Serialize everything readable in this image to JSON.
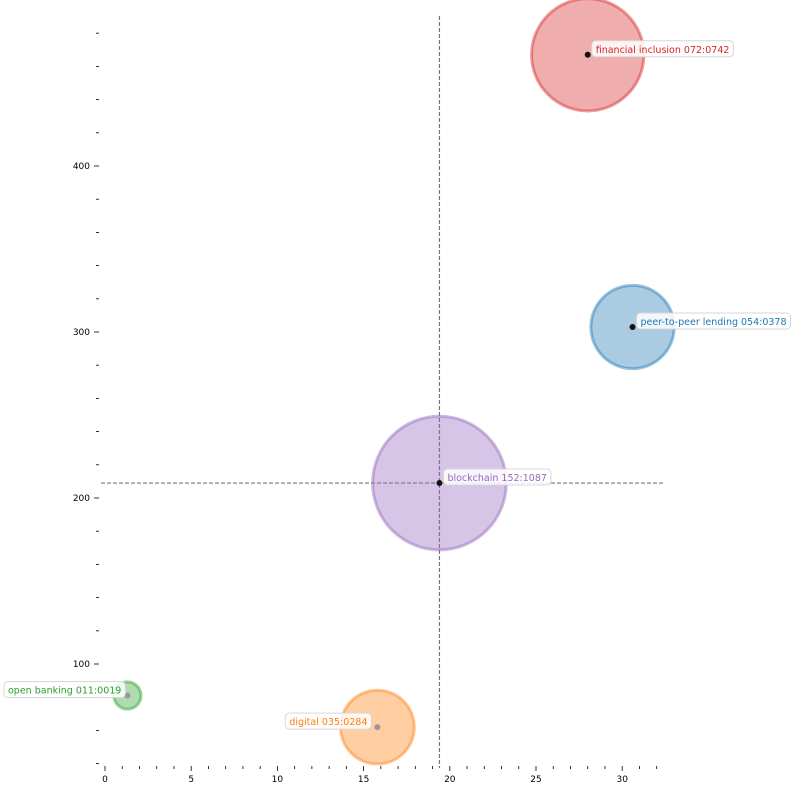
{
  "chart_data": {
    "type": "scatter",
    "title": "",
    "xlabel": "",
    "ylabel": "",
    "xlim": [
      0,
      32.5
    ],
    "ylim": [
      40,
      490
    ],
    "x_ticks": [
      "0",
      "5",
      "10",
      "15",
      "20",
      "25",
      "30"
    ],
    "y_ticks": [
      "100",
      "200",
      "300",
      "400"
    ],
    "grid": false,
    "reference_lines": {
      "x": 19.4,
      "y": 209
    },
    "points": [
      {
        "label": "financial inclusion 072:0742",
        "x": 28.0,
        "y": 467,
        "size": 742,
        "color": "#d62728"
      },
      {
        "label": "peer-to-peer lending 054:0378",
        "x": 30.6,
        "y": 303,
        "size": 378,
        "color": "#1f77b4"
      },
      {
        "label": "blockchain 152:1087",
        "x": 19.4,
        "y": 209,
        "size": 1087,
        "color": "#9467bd"
      },
      {
        "label": "open banking 011:0019",
        "x": 1.3,
        "y": 81,
        "size": 19,
        "color": "#2ca02c"
      },
      {
        "label": "digital 035:0284",
        "x": 15.8,
        "y": 62,
        "size": 284,
        "color": "#ff7f0e"
      }
    ]
  }
}
